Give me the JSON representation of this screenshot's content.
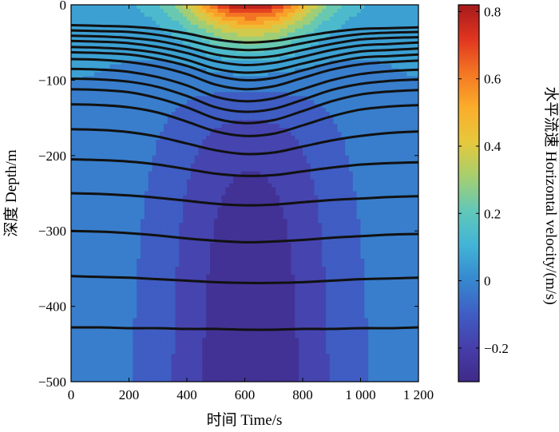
{
  "chart_data": {
    "type": "heatmap",
    "title": "",
    "xlabel": "时间 Time/s",
    "ylabel": "深度 Depth/m",
    "colorbar_label": "水平流速 Horizontal velocity/(m/s)",
    "xlim": [
      0,
      1200
    ],
    "ylim": [
      -500,
      0
    ],
    "clim": [
      -0.3,
      0.82
    ],
    "x_ticks": [
      0,
      200,
      400,
      600,
      800,
      1000,
      1200
    ],
    "x_tick_labels": [
      "0",
      "200",
      "400",
      "600",
      "800",
      "1 000",
      "1 200"
    ],
    "y_ticks": [
      0,
      -100,
      -200,
      -300,
      -400,
      -500
    ],
    "y_tick_labels": [
      "0",
      "−100",
      "−200",
      "−300",
      "−400",
      "−500"
    ],
    "colorbar_ticks": [
      0.8,
      0.6,
      0.4,
      0.2,
      0,
      -0.2
    ],
    "colorbar_tick_labels": [
      "0.8",
      "0.6",
      "0.4",
      "0.2",
      "0",
      "−0.2"
    ],
    "colormap": [
      "#3e2a88",
      "#473eaa",
      "#3f5ec4",
      "#3689cf",
      "#42b4d6",
      "#62c8b8",
      "#a7cf6e",
      "#e6c83c",
      "#fbad2a",
      "#f47724",
      "#e1351f",
      "#a61a1c"
    ],
    "velocity_field": {
      "description_peak_time": 620,
      "peak_surface_velocity": 0.8,
      "min_velocity": -0.28
    },
    "isopycnals": {
      "x": [
        0,
        100,
        200,
        300,
        400,
        500,
        600,
        700,
        800,
        900,
        1000,
        1100,
        1200
      ],
      "series": [
        {
          "values": [
            -27,
            -28,
            -29,
            -32,
            -38,
            -46,
            -50,
            -48,
            -42,
            -36,
            -32,
            -31,
            -30
          ]
        },
        {
          "values": [
            -34,
            -35,
            -36,
            -40,
            -47,
            -56,
            -60,
            -58,
            -51,
            -44,
            -39,
            -37,
            -36
          ]
        },
        {
          "values": [
            -41,
            -42,
            -44,
            -48,
            -56,
            -66,
            -70,
            -68,
            -60,
            -52,
            -46,
            -44,
            -43
          ]
        },
        {
          "values": [
            -48,
            -49,
            -51,
            -56,
            -64,
            -75,
            -80,
            -77,
            -69,
            -60,
            -54,
            -52,
            -50
          ]
        },
        {
          "values": [
            -56,
            -57,
            -59,
            -64,
            -73,
            -85,
            -90,
            -87,
            -78,
            -69,
            -62,
            -60,
            -58
          ]
        },
        {
          "values": [
            -63,
            -64,
            -66,
            -72,
            -81,
            -94,
            -100,
            -97,
            -87,
            -77,
            -70,
            -68,
            -66
          ]
        },
        {
          "values": [
            -72,
            -73,
            -76,
            -82,
            -92,
            -106,
            -112,
            -108,
            -97,
            -86,
            -79,
            -76,
            -74
          ]
        },
        {
          "values": [
            -85,
            -86,
            -89,
            -96,
            -107,
            -122,
            -128,
            -124,
            -112,
            -100,
            -92,
            -88,
            -86
          ]
        },
        {
          "values": [
            -98,
            -99,
            -102,
            -109,
            -121,
            -136,
            -142,
            -138,
            -126,
            -113,
            -105,
            -101,
            -99
          ]
        },
        {
          "values": [
            -112,
            -113,
            -116,
            -124,
            -136,
            -151,
            -157,
            -153,
            -141,
            -128,
            -119,
            -115,
            -113
          ]
        },
        {
          "values": [
            -132,
            -133,
            -136,
            -143,
            -155,
            -168,
            -174,
            -171,
            -160,
            -148,
            -139,
            -135,
            -133
          ]
        },
        {
          "values": [
            -165,
            -166,
            -169,
            -175,
            -184,
            -193,
            -198,
            -196,
            -188,
            -180,
            -174,
            -170,
            -168
          ]
        },
        {
          "values": [
            -205,
            -206,
            -208,
            -212,
            -218,
            -224,
            -227,
            -226,
            -221,
            -216,
            -212,
            -210,
            -209
          ]
        },
        {
          "values": [
            -250,
            -251,
            -253,
            -256,
            -260,
            -264,
            -266,
            -265,
            -262,
            -259,
            -257,
            -255,
            -254
          ]
        },
        {
          "values": [
            -300,
            -301,
            -303,
            -306,
            -310,
            -313,
            -315,
            -314,
            -312,
            -309,
            -307,
            -305,
            -304
          ]
        },
        {
          "values": [
            -360,
            -361,
            -362,
            -364,
            -366,
            -368,
            -369,
            -369,
            -368,
            -366,
            -364,
            -363,
            -362
          ]
        },
        {
          "values": [
            -428,
            -428,
            -429,
            -429,
            -430,
            -430,
            -431,
            -431,
            -430,
            -430,
            -429,
            -429,
            -428
          ]
        }
      ]
    }
  }
}
